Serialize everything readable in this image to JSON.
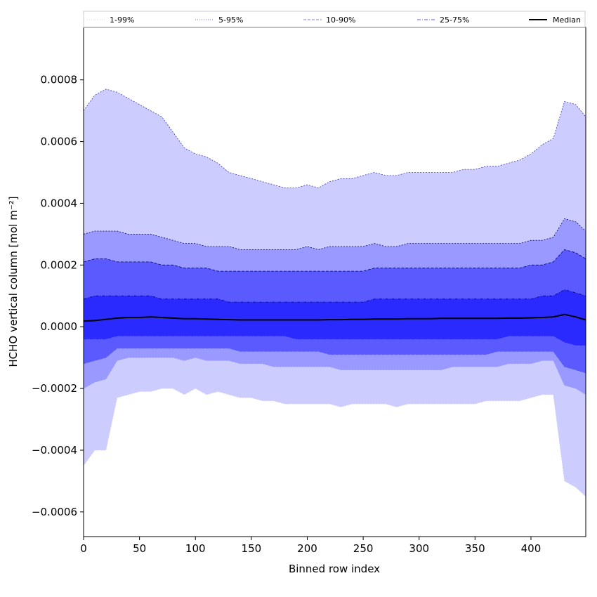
{
  "chart_data": {
    "type": "area",
    "xlabel": "Binned row index",
    "ylabel": "HCHO vertical column [mol m⁻²]",
    "xlim": [
      0,
      449
    ],
    "ylim": [
      -0.00068,
      0.00097
    ],
    "xticks": [
      0,
      50,
      100,
      150,
      200,
      250,
      300,
      350,
      400
    ],
    "xtick_labels": [
      "0",
      "50",
      "100",
      "150",
      "200",
      "250",
      "300",
      "350",
      "400"
    ],
    "yticks": [
      -0.0006,
      -0.0004,
      -0.0002,
      0.0,
      0.0002,
      0.0004,
      0.0006,
      0.0008
    ],
    "ytick_labels": [
      "−0.0006",
      "−0.0004",
      "−0.0002",
      "0.0000",
      "0.0002",
      "0.0004",
      "0.0006",
      "0.0008"
    ],
    "grid": false,
    "legend_position": "top",
    "legend": [
      {
        "name": "1-99%",
        "line_color": "#d8d8ec",
        "dash": "dotted"
      },
      {
        "name": "5-95%",
        "line_color": "#6a6ad8",
        "dash": "dotted"
      },
      {
        "name": "10-90%",
        "line_color": "#7a7aef",
        "dash": "dashed"
      },
      {
        "name": "25-75%",
        "line_color": "#5a5ae8",
        "dash": "dashdot"
      },
      {
        "name": "Median",
        "line_color": "#000000",
        "dash": "solid"
      }
    ],
    "x": [
      0,
      10,
      20,
      30,
      40,
      50,
      60,
      70,
      80,
      90,
      100,
      110,
      120,
      130,
      140,
      150,
      160,
      170,
      180,
      190,
      200,
      210,
      220,
      230,
      240,
      250,
      260,
      270,
      280,
      290,
      300,
      310,
      320,
      330,
      340,
      350,
      360,
      370,
      380,
      390,
      400,
      410,
      420,
      430,
      440,
      449
    ],
    "bands": [
      {
        "range": "1-99%",
        "fill_color": "#ccccff",
        "lower": [
          -0.00045,
          -0.0004,
          -0.0004,
          -0.00023,
          -0.00022,
          -0.00021,
          -0.00021,
          -0.0002,
          -0.0002,
          -0.00022,
          -0.0002,
          -0.00022,
          -0.00021,
          -0.00022,
          -0.00023,
          -0.00023,
          -0.00024,
          -0.00024,
          -0.00025,
          -0.00025,
          -0.00025,
          -0.00025,
          -0.00025,
          -0.00026,
          -0.00025,
          -0.00025,
          -0.00025,
          -0.00025,
          -0.00026,
          -0.00025,
          -0.00025,
          -0.00025,
          -0.00025,
          -0.00025,
          -0.00025,
          -0.00025,
          -0.00024,
          -0.00024,
          -0.00024,
          -0.00024,
          -0.00023,
          -0.00022,
          -0.00022,
          -0.0005,
          -0.00052,
          -0.00055
        ],
        "upper": [
          0.0007,
          0.00075,
          0.00077,
          0.00076,
          0.00074,
          0.00072,
          0.0007,
          0.00068,
          0.00063,
          0.00058,
          0.00056,
          0.00055,
          0.00053,
          0.0005,
          0.00049,
          0.00048,
          0.00047,
          0.00046,
          0.00045,
          0.00045,
          0.00046,
          0.00045,
          0.00047,
          0.00048,
          0.00048,
          0.00049,
          0.0005,
          0.00049,
          0.00049,
          0.0005,
          0.0005,
          0.0005,
          0.0005,
          0.0005,
          0.00051,
          0.00051,
          0.00052,
          0.00052,
          0.00053,
          0.00054,
          0.00056,
          0.00059,
          0.00061,
          0.00073,
          0.00072,
          0.00068
        ]
      },
      {
        "range": "5-95%",
        "fill_color": "#9999ff",
        "lower": [
          -0.0002,
          -0.00018,
          -0.00017,
          -0.00011,
          -0.0001,
          -0.0001,
          -0.0001,
          -0.0001,
          -0.0001,
          -0.00011,
          -0.0001,
          -0.00011,
          -0.00011,
          -0.00011,
          -0.00012,
          -0.00012,
          -0.00012,
          -0.00013,
          -0.00013,
          -0.00013,
          -0.00013,
          -0.00013,
          -0.00013,
          -0.00014,
          -0.00014,
          -0.00014,
          -0.00014,
          -0.00014,
          -0.00014,
          -0.00014,
          -0.00014,
          -0.00014,
          -0.00014,
          -0.00013,
          -0.00013,
          -0.00013,
          -0.00013,
          -0.00013,
          -0.00012,
          -0.00012,
          -0.00012,
          -0.00011,
          -0.00011,
          -0.00019,
          -0.0002,
          -0.00022
        ],
        "upper": [
          0.0003,
          0.00031,
          0.00031,
          0.00031,
          0.0003,
          0.0003,
          0.0003,
          0.00029,
          0.00028,
          0.00027,
          0.00027,
          0.00026,
          0.00026,
          0.00026,
          0.00025,
          0.00025,
          0.00025,
          0.00025,
          0.00025,
          0.00025,
          0.00026,
          0.00025,
          0.00026,
          0.00026,
          0.00026,
          0.00026,
          0.00027,
          0.00026,
          0.00026,
          0.00027,
          0.00027,
          0.00027,
          0.00027,
          0.00027,
          0.00027,
          0.00027,
          0.00027,
          0.00027,
          0.00027,
          0.00027,
          0.00028,
          0.00028,
          0.00029,
          0.00035,
          0.00034,
          0.00031
        ]
      },
      {
        "range": "10-90%",
        "fill_color": "#5a5aff",
        "lower": [
          -0.00012,
          -0.00011,
          -0.0001,
          -7e-05,
          -7e-05,
          -7e-05,
          -7e-05,
          -7e-05,
          -7e-05,
          -7e-05,
          -7e-05,
          -7e-05,
          -7e-05,
          -7e-05,
          -8e-05,
          -8e-05,
          -8e-05,
          -8e-05,
          -8e-05,
          -8e-05,
          -8e-05,
          -8e-05,
          -9e-05,
          -9e-05,
          -9e-05,
          -9e-05,
          -9e-05,
          -9e-05,
          -9e-05,
          -9e-05,
          -9e-05,
          -9e-05,
          -9e-05,
          -9e-05,
          -9e-05,
          -9e-05,
          -9e-05,
          -8e-05,
          -8e-05,
          -8e-05,
          -8e-05,
          -8e-05,
          -8e-05,
          -0.00013,
          -0.00014,
          -0.00015
        ],
        "upper": [
          0.00021,
          0.00022,
          0.00022,
          0.00021,
          0.00021,
          0.00021,
          0.00021,
          0.0002,
          0.0002,
          0.00019,
          0.00019,
          0.00019,
          0.00018,
          0.00018,
          0.00018,
          0.00018,
          0.00018,
          0.00018,
          0.00018,
          0.00018,
          0.00018,
          0.00018,
          0.00018,
          0.00018,
          0.00018,
          0.00018,
          0.00019,
          0.00019,
          0.00019,
          0.00019,
          0.00019,
          0.00019,
          0.00019,
          0.00019,
          0.00019,
          0.00019,
          0.00019,
          0.00019,
          0.00019,
          0.00019,
          0.0002,
          0.0002,
          0.00021,
          0.00025,
          0.00024,
          0.00022
        ]
      },
      {
        "range": "25-75%",
        "fill_color": "#2a2aff",
        "lower": [
          -4e-05,
          -4e-05,
          -4e-05,
          -3e-05,
          -3e-05,
          -3e-05,
          -3e-05,
          -3e-05,
          -3e-05,
          -3e-05,
          -3e-05,
          -3e-05,
          -3e-05,
          -3e-05,
          -3e-05,
          -3e-05,
          -3e-05,
          -3e-05,
          -3e-05,
          -4e-05,
          -4e-05,
          -4e-05,
          -4e-05,
          -4e-05,
          -4e-05,
          -4e-05,
          -4e-05,
          -4e-05,
          -4e-05,
          -4e-05,
          -4e-05,
          -4e-05,
          -4e-05,
          -4e-05,
          -4e-05,
          -4e-05,
          -4e-05,
          -4e-05,
          -3e-05,
          -3e-05,
          -3e-05,
          -3e-05,
          -3e-05,
          -5e-05,
          -6e-05,
          -6e-05
        ],
        "upper": [
          9e-05,
          0.0001,
          0.0001,
          0.0001,
          0.0001,
          0.0001,
          0.0001,
          9e-05,
          9e-05,
          9e-05,
          9e-05,
          9e-05,
          9e-05,
          8e-05,
          8e-05,
          8e-05,
          8e-05,
          8e-05,
          8e-05,
          8e-05,
          8e-05,
          8e-05,
          8e-05,
          8e-05,
          8e-05,
          8e-05,
          9e-05,
          9e-05,
          9e-05,
          9e-05,
          9e-05,
          9e-05,
          9e-05,
          9e-05,
          9e-05,
          9e-05,
          9e-05,
          9e-05,
          9e-05,
          9e-05,
          9e-05,
          0.0001,
          0.0001,
          0.00012,
          0.00011,
          0.0001
        ]
      }
    ],
    "series": [
      {
        "name": "Median",
        "color": "#000000",
        "values": [
          1.8e-05,
          2e-05,
          2.4e-05,
          2.8e-05,
          3e-05,
          3e-05,
          3.2e-05,
          3e-05,
          2.8e-05,
          2.6e-05,
          2.6e-05,
          2.5e-05,
          2.4e-05,
          2.3e-05,
          2.2e-05,
          2.2e-05,
          2.2e-05,
          2.2e-05,
          2.2e-05,
          2.2e-05,
          2.2e-05,
          2.2e-05,
          2.3e-05,
          2.3e-05,
          2.4e-05,
          2.4e-05,
          2.5e-05,
          2.5e-05,
          2.5e-05,
          2.6e-05,
          2.6e-05,
          2.6e-05,
          2.7e-05,
          2.7e-05,
          2.7e-05,
          2.7e-05,
          2.7e-05,
          2.7e-05,
          2.8e-05,
          2.8e-05,
          2.9e-05,
          3e-05,
          3.2e-05,
          4e-05,
          3.2e-05,
          2.2e-05
        ]
      }
    ]
  }
}
